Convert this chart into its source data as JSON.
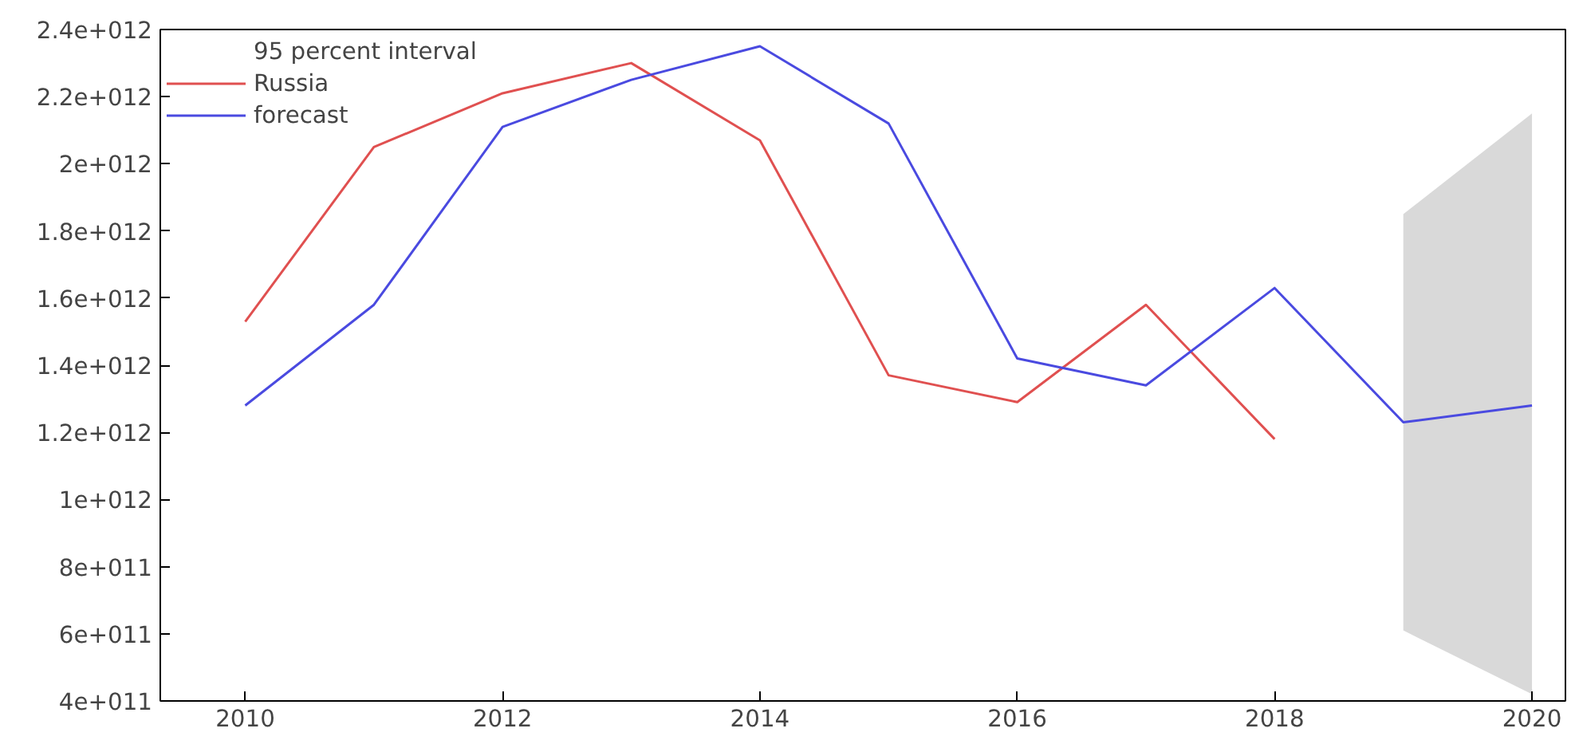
{
  "chart_data": {
    "type": "line",
    "x": [
      2010,
      2011,
      2012,
      2013,
      2014,
      2015,
      2016,
      2017,
      2018,
      2019,
      2020
    ],
    "series": [
      {
        "name": "Russia",
        "color": "#e05050",
        "x": [
          2010,
          2011,
          2012,
          2013,
          2014,
          2015,
          2016,
          2017,
          2018
        ],
        "values": [
          1530000000000.0,
          2050000000000.0,
          2210000000000.0,
          2300000000000.0,
          2070000000000.0,
          1370000000000.0,
          1290000000000.0,
          1580000000000.0,
          1180000000000.0
        ]
      },
      {
        "name": "forecast",
        "color": "#4a4ae0",
        "values": [
          1280000000000.0,
          1580000000000.0,
          2110000000000.0,
          2250000000000.0,
          2350000000000.0,
          2120000000000.0,
          1420000000000.0,
          1340000000000.0,
          1630000000000.0,
          1230000000000.0,
          1280000000000.0
        ],
        "lower": [
          null,
          null,
          null,
          null,
          null,
          null,
          null,
          null,
          null,
          610000000000.0,
          420000000000.0
        ],
        "upper": [
          null,
          null,
          null,
          null,
          null,
          null,
          null,
          null,
          null,
          1850000000000.0,
          2150000000000.0
        ]
      }
    ],
    "annotations": [
      "95 percent interval"
    ],
    "xlim": [
      2009.34,
      2020.26
    ],
    "xticks": [
      2010,
      2012,
      2014,
      2016,
      2018,
      2020
    ],
    "ylim": [
      400000000000.0,
      2400000000000.0
    ],
    "yticks": [
      {
        "value": 400000000000.0,
        "label": "4e+011"
      },
      {
        "value": 600000000000.0,
        "label": "6e+011"
      },
      {
        "value": 800000000000.0,
        "label": "8e+011"
      },
      {
        "value": 1000000000000.0,
        "label": "1e+012"
      },
      {
        "value": 1200000000000.0,
        "label": "1.2e+012"
      },
      {
        "value": 1400000000000.0,
        "label": "1.4e+012"
      },
      {
        "value": 1600000000000.0,
        "label": "1.6e+012"
      },
      {
        "value": 1800000000000.0,
        "label": "1.8e+012"
      },
      {
        "value": 2000000000000.0,
        "label": "2e+012"
      },
      {
        "value": 2200000000000.0,
        "label": "2.2e+012"
      },
      {
        "value": 2400000000000.0,
        "label": "2.4e+012"
      }
    ],
    "grid": false,
    "legend": "top left",
    "line_style": "solid"
  }
}
